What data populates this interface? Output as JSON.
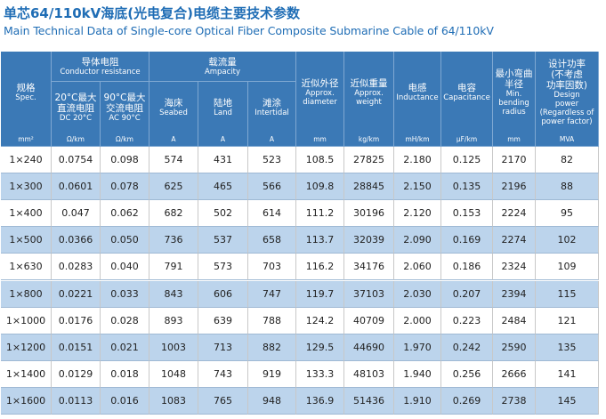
{
  "header": {
    "title_zh": "单芯64/110kV海底(光电复合)电缆主要技术参数",
    "title_en": "Main Technical Data of Single-core Optical Fiber Composite Submarine Cable of 64/110kV"
  },
  "table": {
    "columns": [
      {
        "lines": [
          "规格",
          "Spec."
        ],
        "unit": "mm²"
      },
      {
        "zh": "导体电阻",
        "en": "Conductor resistance",
        "children": [
          {
            "lines": [
              "20°C最大",
              "直流电阻",
              "DC 20°C"
            ],
            "unit": "Ω/km"
          },
          {
            "lines": [
              "90°C最大",
              "交流电阻",
              "AC 90°C"
            ],
            "unit": "Ω/km"
          }
        ]
      },
      {
        "zh": "载流量",
        "en": "Ampacity",
        "children": [
          {
            "lines": [
              "海床",
              "Seabed"
            ],
            "unit": "A"
          },
          {
            "lines": [
              "陆地",
              "Land"
            ],
            "unit": "A"
          },
          {
            "lines": [
              "滩涂",
              "Intertidal"
            ],
            "unit": "A"
          }
        ]
      },
      {
        "lines": [
          "近似外径",
          "Approx.",
          "diameter"
        ],
        "unit": "mm"
      },
      {
        "lines": [
          "近似重量",
          "Approx.",
          "weight"
        ],
        "unit": "kg/km"
      },
      {
        "lines": [
          "电感",
          "Inductance"
        ],
        "unit": "mH/km"
      },
      {
        "lines": [
          "电容",
          "Capacitance"
        ],
        "unit": "μF/km"
      },
      {
        "lines": [
          "最小弯曲",
          "半径",
          "Min.",
          "bending",
          "radius"
        ],
        "unit": "mm"
      },
      {
        "lines": [
          "设计功率",
          "(不考虑",
          "功率因数)",
          "Design",
          "power",
          "(Regardless of",
          "power factor)"
        ],
        "unit": "MVA"
      }
    ],
    "rows": [
      [
        "1×240",
        "0.0754",
        "0.098",
        "574",
        "431",
        "523",
        "108.5",
        "27825",
        "2.180",
        "0.125",
        "2170",
        "82"
      ],
      [
        "1×300",
        "0.0601",
        "0.078",
        "625",
        "465",
        "566",
        "109.8",
        "28845",
        "2.150",
        "0.135",
        "2196",
        "88"
      ],
      [
        "1×400",
        "0.047",
        "0.062",
        "682",
        "502",
        "614",
        "111.2",
        "30196",
        "2.120",
        "0.153",
        "2224",
        "95"
      ],
      [
        "1×500",
        "0.0366",
        "0.050",
        "736",
        "537",
        "658",
        "113.7",
        "32039",
        "2.090",
        "0.169",
        "2274",
        "102"
      ],
      [
        "1×630",
        "0.0283",
        "0.040",
        "791",
        "573",
        "703",
        "116.2",
        "34176",
        "2.060",
        "0.186",
        "2324",
        "109"
      ],
      [
        "1×800",
        "0.0221",
        "0.033",
        "843",
        "606",
        "747",
        "119.7",
        "37103",
        "2.030",
        "0.207",
        "2394",
        "115"
      ],
      [
        "1×1000",
        "0.0176",
        "0.028",
        "893",
        "639",
        "788",
        "124.2",
        "40709",
        "2.000",
        "0.223",
        "2484",
        "121"
      ],
      [
        "1×1200",
        "0.0151",
        "0.021",
        "1003",
        "713",
        "882",
        "129.5",
        "44690",
        "1.970",
        "0.242",
        "2590",
        "135"
      ],
      [
        "1×1400",
        "0.0129",
        "0.018",
        "1048",
        "743",
        "919",
        "133.3",
        "48103",
        "1.940",
        "0.256",
        "2666",
        "141"
      ],
      [
        "1×1600",
        "0.0113",
        "0.016",
        "1083",
        "765",
        "948",
        "136.9",
        "51436",
        "1.910",
        "0.269",
        "2738",
        "145"
      ]
    ]
  }
}
